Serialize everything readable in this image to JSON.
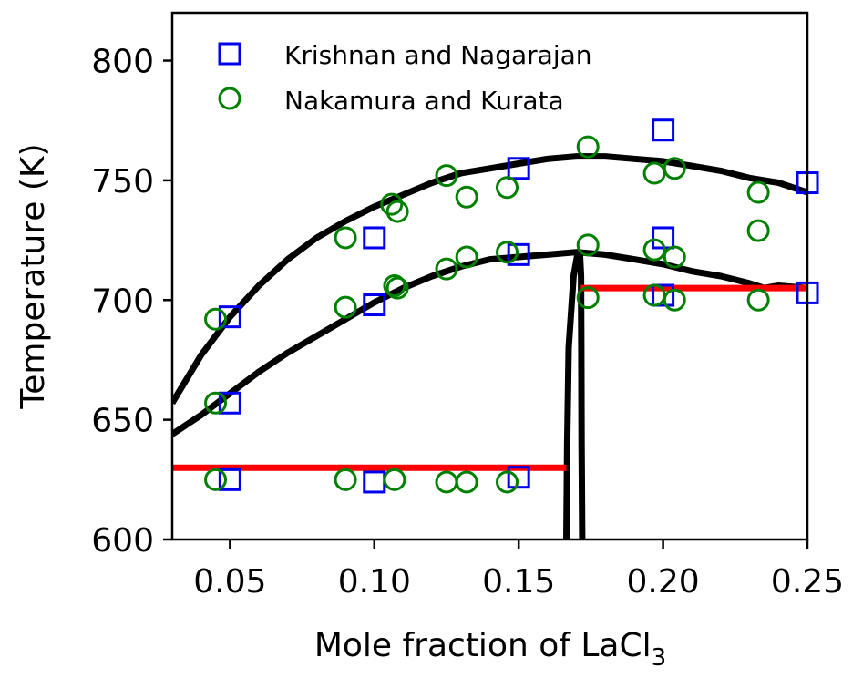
{
  "chart_data": {
    "type": "scatter",
    "xlabel_main": "Mole fraction of LaCl",
    "xlabel_sub": "3",
    "ylabel": "Temperature (K)",
    "xlim": [
      0.03,
      0.25
    ],
    "ylim": [
      600,
      820
    ],
    "xticks": [
      0.05,
      0.1,
      0.15,
      0.2,
      0.25
    ],
    "xtick_labels": [
      "0.05",
      "0.10",
      "0.15",
      "0.20",
      "0.25"
    ],
    "yticks": [
      600,
      650,
      700,
      750,
      800
    ],
    "ytick_labels": [
      "600",
      "650",
      "700",
      "750",
      "800"
    ],
    "grid": false,
    "legend_position": "top-left",
    "series": [
      {
        "name": "Krishnan and Nagarajan",
        "marker": "square",
        "color": "#0000ee",
        "points": [
          [
            0.05,
            693
          ],
          [
            0.05,
            657
          ],
          [
            0.05,
            625
          ],
          [
            0.1,
            726
          ],
          [
            0.1,
            698
          ],
          [
            0.1,
            624
          ],
          [
            0.15,
            755
          ],
          [
            0.15,
            719
          ],
          [
            0.15,
            626
          ],
          [
            0.2,
            771
          ],
          [
            0.2,
            726
          ],
          [
            0.2,
            702
          ],
          [
            0.25,
            749
          ],
          [
            0.25,
            703
          ]
        ]
      },
      {
        "name": "Nakamura and Kurata",
        "marker": "circle",
        "color": "#008000",
        "points": [
          [
            0.045,
            692
          ],
          [
            0.045,
            657
          ],
          [
            0.045,
            625
          ],
          [
            0.09,
            726
          ],
          [
            0.09,
            697
          ],
          [
            0.09,
            625
          ],
          [
            0.106,
            740
          ],
          [
            0.108,
            737
          ],
          [
            0.107,
            706
          ],
          [
            0.108,
            705
          ],
          [
            0.107,
            625
          ],
          [
            0.125,
            752
          ],
          [
            0.125,
            713
          ],
          [
            0.125,
            624
          ],
          [
            0.132,
            743
          ],
          [
            0.132,
            718
          ],
          [
            0.132,
            624
          ],
          [
            0.146,
            747
          ],
          [
            0.146,
            720
          ],
          [
            0.146,
            624
          ],
          [
            0.174,
            764
          ],
          [
            0.174,
            723
          ],
          [
            0.174,
            701
          ],
          [
            0.197,
            753
          ],
          [
            0.197,
            721
          ],
          [
            0.197,
            702
          ],
          [
            0.204,
            755
          ],
          [
            0.204,
            718
          ],
          [
            0.204,
            700
          ],
          [
            0.233,
            745
          ],
          [
            0.233,
            729
          ],
          [
            0.233,
            700
          ]
        ]
      }
    ],
    "lines": [
      {
        "color": "#000000",
        "points": [
          [
            0.03,
            657
          ],
          [
            0.04,
            677
          ],
          [
            0.05,
            693
          ],
          [
            0.06,
            706
          ],
          [
            0.07,
            717
          ],
          [
            0.08,
            726
          ],
          [
            0.09,
            733
          ],
          [
            0.1,
            739
          ],
          [
            0.11,
            744
          ],
          [
            0.12,
            749
          ],
          [
            0.13,
            753
          ],
          [
            0.14,
            755
          ],
          [
            0.15,
            757
          ],
          [
            0.16,
            759
          ],
          [
            0.17,
            760
          ],
          [
            0.18,
            760
          ],
          [
            0.19,
            759
          ],
          [
            0.2,
            758
          ],
          [
            0.21,
            756
          ],
          [
            0.22,
            754
          ],
          [
            0.23,
            751
          ],
          [
            0.24,
            749
          ],
          [
            0.25,
            745
          ]
        ]
      },
      {
        "color": "#000000",
        "points": [
          [
            0.03,
            644
          ],
          [
            0.04,
            652
          ],
          [
            0.05,
            661
          ],
          [
            0.06,
            670
          ],
          [
            0.07,
            678
          ],
          [
            0.08,
            685
          ],
          [
            0.09,
            692
          ],
          [
            0.1,
            699
          ],
          [
            0.11,
            705
          ],
          [
            0.12,
            710
          ],
          [
            0.13,
            714
          ],
          [
            0.14,
            717
          ],
          [
            0.15,
            718
          ],
          [
            0.16,
            719
          ],
          [
            0.17,
            720
          ],
          [
            0.18,
            719
          ],
          [
            0.19,
            717
          ],
          [
            0.2,
            715
          ],
          [
            0.21,
            712
          ],
          [
            0.22,
            710
          ],
          [
            0.23,
            707
          ],
          [
            0.235,
            705
          ],
          [
            0.24,
            706
          ],
          [
            0.25,
            705
          ]
        ]
      },
      {
        "color": "#000000",
        "points": [
          [
            0.1665,
            600
          ],
          [
            0.1668,
            640
          ],
          [
            0.1673,
            680
          ],
          [
            0.169,
            710
          ],
          [
            0.1705,
            720
          ],
          [
            0.1712,
            720
          ],
          [
            0.1716,
            710
          ],
          [
            0.1717,
            680
          ],
          [
            0.1718,
            640
          ],
          [
            0.172,
            600
          ]
        ]
      },
      {
        "color": "#ff0000",
        "points": [
          [
            0.03,
            630
          ],
          [
            0.1665,
            630
          ]
        ]
      },
      {
        "color": "#ff0000",
        "points": [
          [
            0.1715,
            705
          ],
          [
            0.25,
            705
          ]
        ]
      }
    ]
  }
}
